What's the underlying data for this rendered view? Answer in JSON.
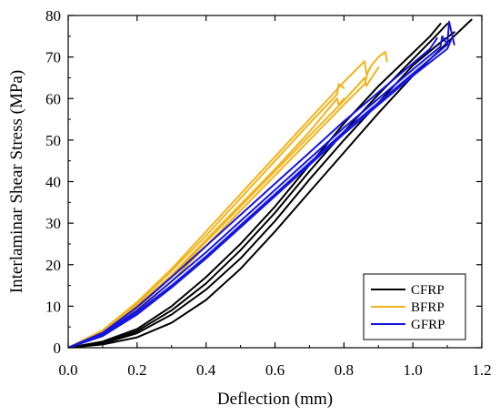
{
  "chart_data": {
    "type": "line",
    "xlabel": "Deflection (mm)",
    "ylabel": "Interlaminar Shear Stress (MPa)",
    "xlim": [
      0.0,
      1.2
    ],
    "ylim": [
      0,
      80
    ],
    "xticks": [
      "0.0",
      "0.2",
      "0.4",
      "0.6",
      "0.8",
      "1.0",
      "1.2"
    ],
    "yticks": [
      "0",
      "10",
      "20",
      "30",
      "40",
      "50",
      "60",
      "70",
      "80"
    ],
    "grid": false,
    "legend_position": "bottom-right",
    "series": [
      {
        "name": "CFRP",
        "color": "#000000",
        "specimens": [
          {
            "x": [
              0,
              0.1,
              0.2,
              0.3,
              0.4,
              0.5,
              0.6,
              0.7,
              0.8,
              0.9,
              1.0,
              1.05,
              1.08
            ],
            "y": [
              0,
              1.5,
              4.5,
              10,
              17,
              25,
              34,
              44,
              54,
              63,
              71,
              75,
              78
            ]
          },
          {
            "x": [
              0,
              0.1,
              0.2,
              0.3,
              0.4,
              0.5,
              0.6,
              0.7,
              0.8,
              0.9,
              1.0,
              1.06,
              1.1
            ],
            "y": [
              0,
              1.2,
              4,
              9,
              15.5,
              23.5,
              32.5,
              42.5,
              52,
              61,
              69.5,
              74.5,
              78
            ]
          },
          {
            "x": [
              0,
              0.1,
              0.2,
              0.3,
              0.4,
              0.5,
              0.6,
              0.7,
              0.8,
              0.9,
              1.0,
              1.08,
              1.12
            ],
            "y": [
              0,
              1.0,
              3.5,
              8,
              14,
              21.5,
              30.5,
              40.5,
              50,
              59,
              68,
              73.5,
              76
            ]
          },
          {
            "x": [
              0,
              0.1,
              0.2,
              0.3,
              0.4,
              0.5,
              0.6,
              0.7,
              0.8,
              0.9,
              1.0,
              1.1,
              1.17
            ],
            "y": [
              0,
              0.8,
              2.5,
              6,
              11.5,
              19,
              28,
              37.5,
              47,
              56.5,
              65.5,
              73.5,
              79
            ]
          }
        ]
      },
      {
        "name": "BFRP",
        "color": "#F2B31A",
        "specimens": [
          {
            "x": [
              0,
              0.1,
              0.2,
              0.3,
              0.4,
              0.5,
              0.6,
              0.7,
              0.78,
              0.785,
              0.8
            ],
            "y": [
              0,
              4,
              10,
              17.5,
              26,
              34.5,
              43,
              52,
              60,
              58.5,
              60
            ]
          },
          {
            "x": [
              0,
              0.1,
              0.2,
              0.3,
              0.4,
              0.5,
              0.6,
              0.7,
              0.8,
              0.86,
              0.865,
              0.88,
              0.9
            ],
            "y": [
              0,
              3.5,
              9.5,
              17,
              25.5,
              34,
              42.5,
              51,
              59.5,
              65,
              63,
              65,
              67.5
            ]
          },
          {
            "x": [
              0,
              0.1,
              0.2,
              0.3,
              0.4,
              0.5,
              0.6,
              0.7,
              0.8,
              0.86,
              0.87,
              0.88,
              0.9,
              0.92,
              0.925
            ],
            "y": [
              0,
              3.2,
              8.8,
              16,
              24.5,
              33,
              41.5,
              50,
              58.5,
              63.5,
              66.5,
              68,
              70,
              71.2,
              69
            ]
          },
          {
            "x": [
              0,
              0.1,
              0.2,
              0.3,
              0.4,
              0.5,
              0.6,
              0.7,
              0.78,
              0.785,
              0.8
            ],
            "y": [
              0,
              3.8,
              10.5,
              18.5,
              27,
              36,
              45,
              54,
              61,
              63.5,
              62.5
            ]
          },
          {
            "x": [
              0,
              0.1,
              0.2,
              0.3,
              0.4,
              0.5,
              0.6,
              0.7,
              0.8,
              0.86,
              0.865
            ],
            "y": [
              0,
              4.2,
              11,
              19,
              28,
              37,
              46,
              55,
              64,
              69,
              66
            ]
          }
        ]
      },
      {
        "name": "GFRP",
        "color": "#1515E0",
        "specimens": [
          {
            "x": [
              0,
              0.1,
              0.2,
              0.3,
              0.4,
              0.5,
              0.6,
              0.7,
              0.8,
              0.9,
              1.0,
              1.1,
              1.105,
              1.12
            ],
            "y": [
              0,
              3,
              8.5,
              15,
              22,
              29.5,
              37,
              44.5,
              52,
              59,
              66,
              73,
              78.5,
              73
            ]
          },
          {
            "x": [
              0,
              0.1,
              0.2,
              0.3,
              0.4,
              0.5,
              0.6,
              0.7,
              0.8,
              0.9,
              1.0,
              1.08,
              1.085,
              1.1
            ],
            "y": [
              0,
              3.3,
              9,
              16,
              23,
              30.5,
              38,
              45.5,
              53,
              60,
              67,
              72.5,
              75,
              73
            ]
          },
          {
            "x": [
              0,
              0.1,
              0.2,
              0.3,
              0.4,
              0.5,
              0.6,
              0.7,
              0.8,
              0.9,
              1.0,
              1.05,
              1.07
            ],
            "y": [
              0,
              3.6,
              9.8,
              17,
              24.5,
              32,
              39.5,
              47,
              54.5,
              61.5,
              68.5,
              72,
              74.5
            ]
          },
          {
            "x": [
              0,
              0.1,
              0.2,
              0.3,
              0.4,
              0.5,
              0.6,
              0.7,
              0.8,
              0.9,
              1.0,
              1.1,
              1.11
            ],
            "y": [
              0,
              2.8,
              8,
              14.5,
              21.5,
              29,
              36.5,
              44,
              51.5,
              58.5,
              65.5,
              72,
              74
            ]
          }
        ]
      }
    ]
  }
}
